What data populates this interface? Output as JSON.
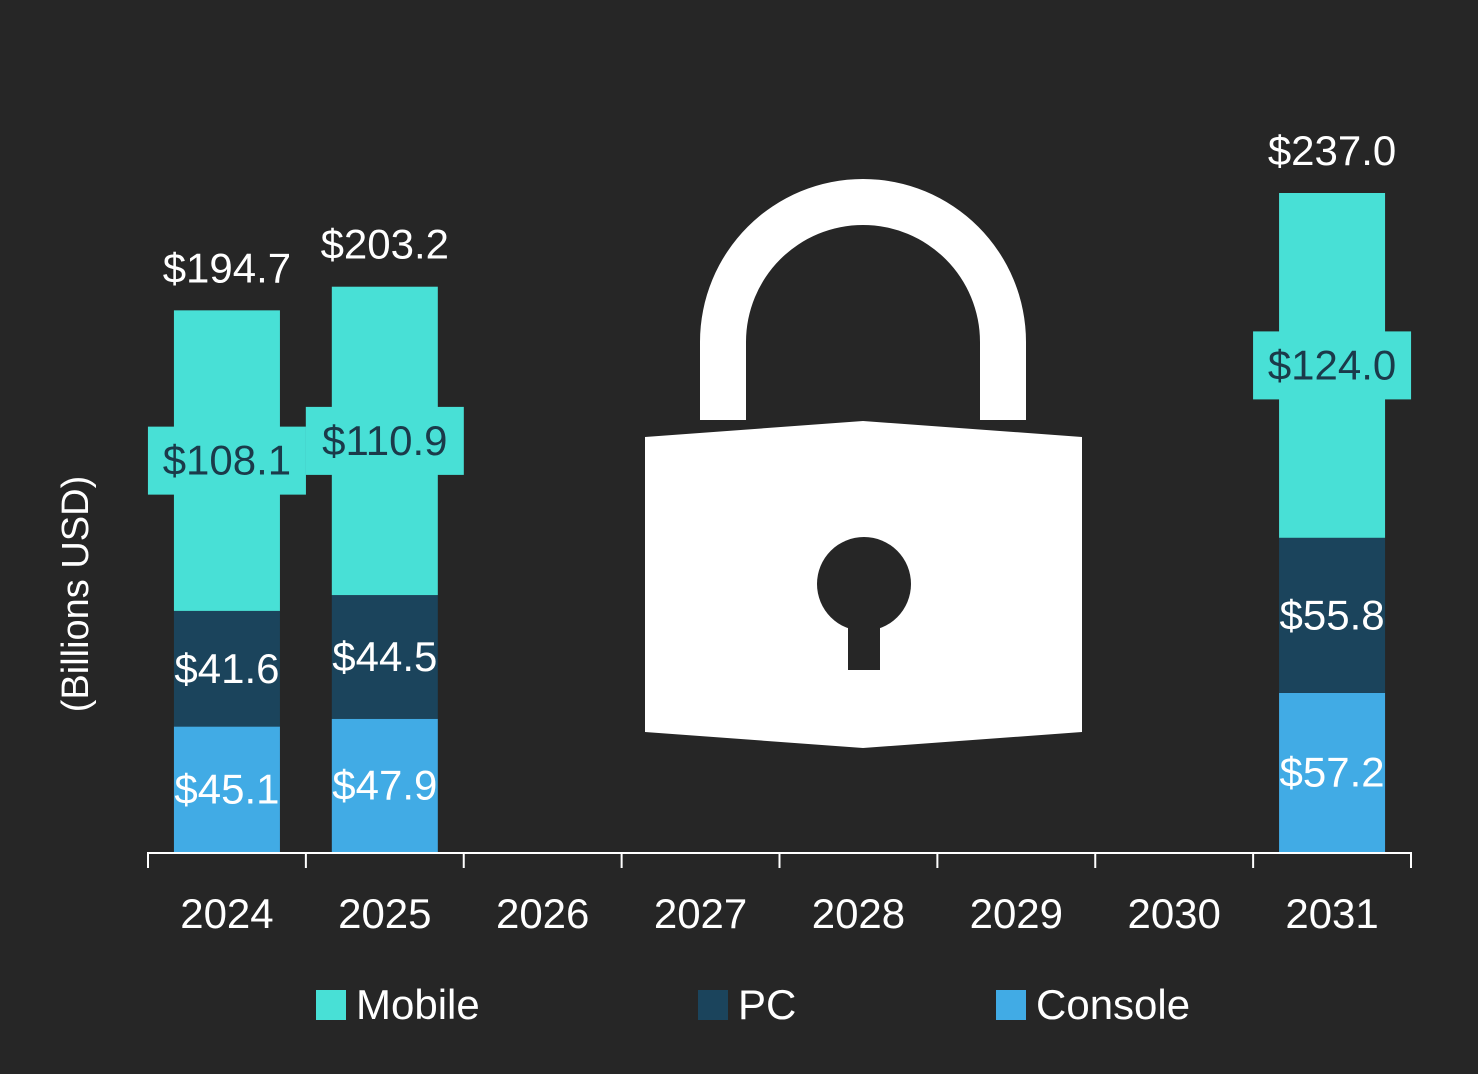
{
  "chart_data": {
    "type": "bar",
    "stacked": true,
    "ylabel": "(Billions USD)",
    "categories": [
      "2024",
      "2025",
      "2026",
      "2027",
      "2028",
      "2029",
      "2030",
      "2031"
    ],
    "series": [
      {
        "name": "Console",
        "color": "#41abe5",
        "values": [
          45.1,
          47.9,
          null,
          null,
          null,
          null,
          null,
          57.2
        ],
        "labels": [
          "$45.1",
          "$47.9",
          "",
          "",
          "",
          "",
          "",
          "$57.2"
        ]
      },
      {
        "name": "PC",
        "color": "#1b445c",
        "values": [
          41.6,
          44.5,
          null,
          null,
          null,
          null,
          null,
          55.8
        ],
        "labels": [
          "$41.6",
          "$44.5",
          "",
          "",
          "",
          "",
          "",
          "$55.8"
        ]
      },
      {
        "name": "Mobile",
        "color": "#48e0d6",
        "values": [
          108.1,
          110.9,
          null,
          null,
          null,
          null,
          null,
          124.0
        ],
        "labels": [
          "$108.1",
          "$110.9",
          "",
          "",
          "",
          "",
          "",
          "$124.0"
        ]
      }
    ],
    "totals": [
      "$194.7",
      "$203.2",
      "",
      "",
      "",
      "",
      "",
      "$237.0"
    ],
    "ylim": [
      0,
      237
    ],
    "grid": false,
    "legend_position": "bottom",
    "overlay_icon": "lock-icon",
    "background": "#262626"
  }
}
